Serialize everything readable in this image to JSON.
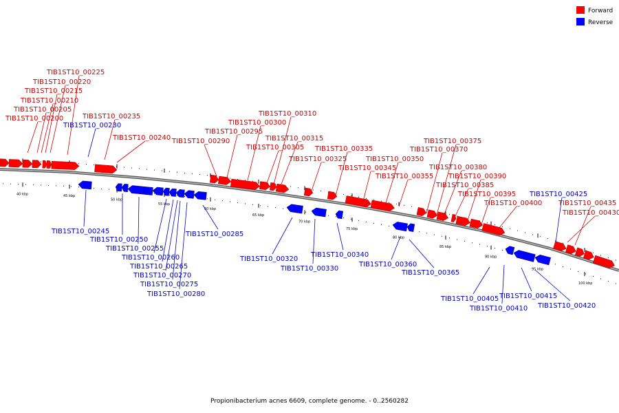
{
  "legend": [
    {
      "label": "Forward",
      "color": "#ff0000"
    },
    {
      "label": "Reverse",
      "color": "#0000ff"
    }
  ],
  "caption": "Propionibacterium acnes 6609, complete genome. - 0..2560282",
  "colors": {
    "forward": "#ff0000",
    "reverse": "#0000ff",
    "backbone": "#888888"
  },
  "ticks": [
    "40 kbp",
    "45 kbp",
    "50 kbp",
    "55 kbp",
    "60 kbp",
    "65 kbp",
    "70 kbp",
    "75 kbp",
    "80 kbp",
    "85 kbp",
    "90 kbp",
    "95 kbp",
    "100 kbp"
  ],
  "forward_labels": [
    "TIB1ST10_00200",
    "TIB1ST10_00205",
    "TIB1ST10_00210",
    "TIB1ST10_00215",
    "TIB1ST10_00220",
    "TIB1ST10_00225",
    "TIB1ST10_00235",
    "TIB1ST10_00240",
    "TIB1ST10_00290",
    "TIB1ST10_00295",
    "TIB1ST10_00300",
    "TIB1ST10_00305",
    "TIB1ST10_00310",
    "TIB1ST10_00315",
    "TIB1ST10_00325",
    "TIB1ST10_00335",
    "TIB1ST10_00345",
    "TIB1ST10_00350",
    "TIB1ST10_00355",
    "TIB1ST10_00370",
    "TIB1ST10_00375",
    "TIB1ST10_00380",
    "TIB1ST10_00385",
    "TIB1ST10_00390",
    "TIB1ST10_00395",
    "TIB1ST10_00400",
    "TIB1ST10_00430",
    "TIB1ST10_00435"
  ],
  "reverse_labels": [
    "TIB1ST10_00230",
    "TIB1ST10_00245",
    "TIB1ST10_00250",
    "TIB1ST10_00255",
    "TIB1ST10_00260",
    "TIB1ST10_00265",
    "TIB1ST10_00270",
    "TIB1ST10_00275",
    "TIB1ST10_00280",
    "TIB1ST10_00285",
    "TIB1ST10_00320",
    "TIB1ST10_00330",
    "TIB1ST10_00340",
    "TIB1ST10_00360",
    "TIB1ST10_00365",
    "TIB1ST10_00405",
    "TIB1ST10_00410",
    "TIB1ST10_00415",
    "TIB1ST10_00420",
    "TIB1ST10_00425"
  ]
}
